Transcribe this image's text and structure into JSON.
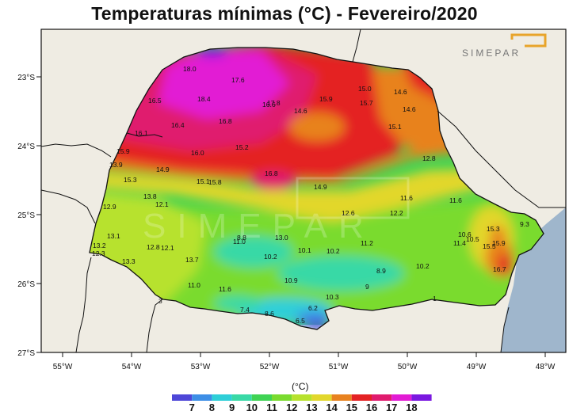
{
  "title": "Temperaturas mínimas (°C) - Fevereiro/2020",
  "logo_text": "SIMEPAR",
  "watermark_text": "SIMEPAR",
  "axes": {
    "lat_ticks": [
      "23°S",
      "24°S",
      "25°S",
      "26°S",
      "27°S"
    ],
    "lon_ticks": [
      "55°W",
      "54°W",
      "53°W",
      "52°W",
      "51°W",
      "50°W",
      "49°W",
      "48°W"
    ]
  },
  "legend": {
    "unit": "(°C)",
    "labels": [
      "7",
      "8",
      "9",
      "10",
      "11",
      "12",
      "13",
      "14",
      "15",
      "16",
      "17",
      "18"
    ],
    "colors": [
      "#4e47d8",
      "#3d8ee6",
      "#2ecfd8",
      "#39d9a6",
      "#3fd354",
      "#7adb2f",
      "#b7e22d",
      "#e2d72c",
      "#e8821f",
      "#e42224",
      "#e01b6e",
      "#e21bd4",
      "#7a18e0"
    ]
  },
  "colors": {
    "ocean": "#9fb6cc",
    "land": "#efece3",
    "border": "#111111"
  },
  "stations": [
    {
      "v": "18.0"
    },
    {
      "v": "17.6"
    },
    {
      "v": "16.5"
    },
    {
      "v": "18.4"
    },
    {
      "v": "17.8"
    },
    {
      "v": "16.6"
    },
    {
      "v": "16.4"
    },
    {
      "v": "16.8"
    },
    {
      "v": "16.1"
    },
    {
      "v": "15.9"
    },
    {
      "v": "13.9"
    },
    {
      "v": "14.9"
    },
    {
      "v": "16.0"
    },
    {
      "v": "15.2"
    },
    {
      "v": "15.3"
    },
    {
      "v": "15.1"
    },
    {
      "v": "15.8"
    },
    {
      "v": "16.8"
    },
    {
      "v": "14.6"
    },
    {
      "v": "15.9"
    },
    {
      "v": "15.0"
    },
    {
      "v": "15.7"
    },
    {
      "v": "14.6"
    },
    {
      "v": "14.6"
    },
    {
      "v": "15.1"
    },
    {
      "v": "12.8"
    },
    {
      "v": "14.9"
    },
    {
      "v": "13.8"
    },
    {
      "v": "12.1"
    },
    {
      "v": "12.9"
    },
    {
      "v": "11.6"
    },
    {
      "v": "11.6"
    },
    {
      "v": "12.6"
    },
    {
      "v": "12.2"
    },
    {
      "v": "13.1"
    },
    {
      "v": "13.2"
    },
    {
      "v": "12.3"
    },
    {
      "v": "12.8"
    },
    {
      "v": "12.1"
    },
    {
      "v": "8.8"
    },
    {
      "v": "11.0"
    },
    {
      "v": "13.0"
    },
    {
      "v": "13.3"
    },
    {
      "v": "13.7"
    },
    {
      "v": "10.2"
    },
    {
      "v": "10.1"
    },
    {
      "v": "10.2"
    },
    {
      "v": "11.2"
    },
    {
      "v": "8.9"
    },
    {
      "v": "10.2"
    },
    {
      "v": "11.0"
    },
    {
      "v": "11.6"
    },
    {
      "v": "10.9"
    },
    {
      "v": "9"
    },
    {
      "v": "10.3"
    },
    {
      "v": "7.4"
    },
    {
      "v": "8.6"
    },
    {
      "v": "6.2"
    },
    {
      "v": "6.5"
    },
    {
      "v": "15.3"
    },
    {
      "v": "10.6"
    },
    {
      "v": "10.5"
    },
    {
      "v": "11.4"
    },
    {
      "v": "15.5"
    },
    {
      "v": "15.9"
    },
    {
      "v": "9.3"
    },
    {
      "v": "16.7"
    },
    {
      "v": "3"
    },
    {
      "v": "1"
    }
  ]
}
